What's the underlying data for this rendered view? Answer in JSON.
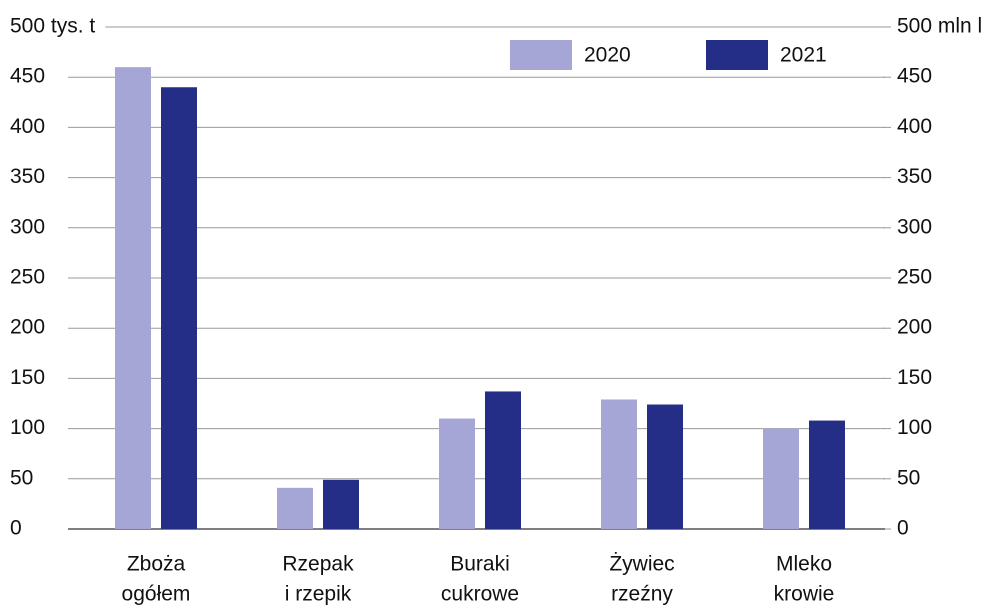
{
  "chart_data": {
    "type": "bar",
    "categories": [
      [
        "Zboża",
        "ogółem"
      ],
      [
        "Rzepak",
        "i rzepik"
      ],
      [
        "Buraki",
        "cukrowe"
      ],
      [
        "Żywiec",
        "rzeźny"
      ],
      [
        "Mleko",
        "krowie"
      ]
    ],
    "series": [
      {
        "name": "2020",
        "color": "#a5a5d6",
        "values": [
          460,
          41,
          110,
          129,
          100
        ]
      },
      {
        "name": "2021",
        "color": "#252e87",
        "values": [
          440,
          49,
          137,
          124,
          108
        ]
      }
    ],
    "ylim": [
      0,
      500
    ],
    "yticks": [
      0,
      50,
      100,
      150,
      200,
      250,
      300,
      350,
      400,
      450,
      {
        "value": 500,
        "label": "500 tys. t"
      }
    ],
    "y2lim": [
      0,
      500
    ],
    "y2ticks": [
      0,
      50,
      100,
      150,
      200,
      250,
      300,
      350,
      400,
      450,
      {
        "value": 500,
        "label": "500 mln l"
      }
    ],
    "grid": true,
    "legend": "top-right"
  }
}
